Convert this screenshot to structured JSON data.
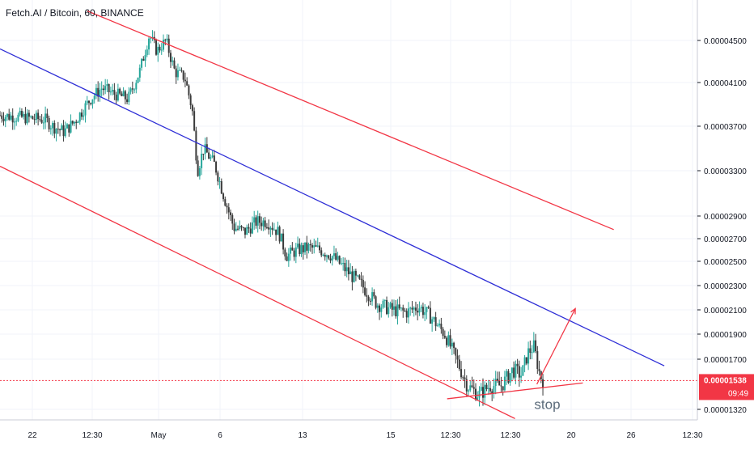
{
  "header": {
    "title": "Fetch.AI / Bitcoin, 60, BINANCE"
  },
  "colors": {
    "candle_up": "#26a69a",
    "candle_down": "#ef5350",
    "candle_body_down": "#3a3a3a",
    "channel_line": "#f23645",
    "mid_line": "#2e2ed6",
    "last_price_bg": "#f23645",
    "grid": "#f0f3fa",
    "axis_text": "#131722"
  },
  "chart_data": {
    "type": "candlestick",
    "title": "Fetch.AI / Bitcoin, 60, BINANCE",
    "ylim": [
      1.25e-05,
      4.78e-05
    ],
    "y_ticks": [
      "0.00004500",
      "0.00004100",
      "0.00003700",
      "0.00003300",
      "0.00002900",
      "0.00002700",
      "0.00002500",
      "0.00002300",
      "0.00002100",
      "0.00001900",
      "0.00001700",
      "0.00001320"
    ],
    "x_ticks": [
      "15",
      "12:30",
      "22",
      "26",
      "May",
      "6",
      "12:30",
      "13",
      "12:30",
      "20",
      "12:30"
    ],
    "last_price": "0.00001538",
    "countdown": "09:49",
    "price_path": [
      [
        0.0,
        3.8e-05
      ],
      [
        0.03,
        3.78e-05
      ],
      [
        0.06,
        3.76e-05
      ],
      [
        0.07,
        3.7e-05
      ],
      [
        0.085,
        3.65e-05
      ],
      [
        0.1,
        3.75e-05
      ],
      [
        0.12,
        3.95e-05
      ],
      [
        0.135,
        4.05e-05
      ],
      [
        0.15,
        4e-05
      ],
      [
        0.17,
        3.95e-05
      ],
      [
        0.185,
        4.2e-05
      ],
      [
        0.198,
        4.55e-05
      ],
      [
        0.208,
        4.4e-05
      ],
      [
        0.22,
        4.5e-05
      ],
      [
        0.232,
        4.2e-05
      ],
      [
        0.245,
        4.15e-05
      ],
      [
        0.255,
        3.85e-05
      ],
      [
        0.262,
        3.3e-05
      ],
      [
        0.27,
        3.5e-05
      ],
      [
        0.285,
        3.35e-05
      ],
      [
        0.298,
        3.05e-05
      ],
      [
        0.31,
        2.8e-05
      ],
      [
        0.325,
        2.76e-05
      ],
      [
        0.34,
        2.85e-05
      ],
      [
        0.355,
        2.85e-05
      ],
      [
        0.37,
        2.75e-05
      ],
      [
        0.38,
        2.55e-05
      ],
      [
        0.395,
        2.6e-05
      ],
      [
        0.41,
        2.62e-05
      ],
      [
        0.425,
        2.6e-05
      ],
      [
        0.44,
        2.55e-05
      ],
      [
        0.46,
        2.42e-05
      ],
      [
        0.48,
        2.3e-05
      ],
      [
        0.5,
        2.15e-05
      ],
      [
        0.52,
        2.1e-05
      ],
      [
        0.54,
        2.08e-05
      ],
      [
        0.555,
        2.13e-05
      ],
      [
        0.57,
        2.05e-05
      ],
      [
        0.59,
        1.9e-05
      ],
      [
        0.605,
        1.7e-05
      ],
      [
        0.62,
        1.5e-05
      ],
      [
        0.635,
        1.43e-05
      ],
      [
        0.65,
        1.5e-05
      ],
      [
        0.665,
        1.5e-05
      ],
      [
        0.68,
        1.62e-05
      ],
      [
        0.692,
        1.58e-05
      ],
      [
        0.7,
        1.75e-05
      ],
      [
        0.708,
        1.8e-05
      ],
      [
        0.716,
        1.58e-05
      ],
      [
        0.72,
        1.54e-05
      ]
    ],
    "drawings": {
      "upper_channel": [
        [
          4.78e-05,
          0.116
        ],
        [
          2.78e-05,
          0.814
        ]
      ],
      "mid_line": [
        [
          4.42e-05,
          0.0
        ],
        [
          1.65e-05,
          0.881
        ]
      ],
      "lower_channel": [
        [
          3.34e-05,
          0.0
        ],
        [
          1.25e-05,
          0.683
        ]
      ],
      "support_line": [
        [
          1.4e-05,
          0.593
        ],
        [
          1.52e-05,
          0.773
        ]
      ],
      "projection_arrow": [
        [
          1.51e-05,
          0.712
        ],
        [
          2.11e-05,
          0.763
        ]
      ],
      "annotation": {
        "text": "stop",
        "position": [
          1.42e-05,
          0.7
        ]
      }
    }
  }
}
